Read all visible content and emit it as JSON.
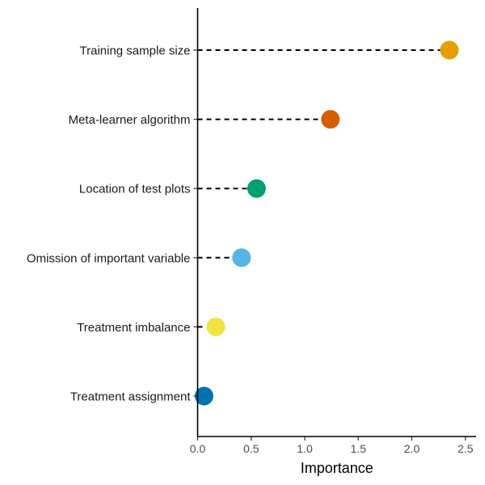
{
  "chart_data": {
    "type": "lollipop",
    "categories": [
      "Training sample size",
      "Meta-learner algorithm",
      "Location of test plots",
      "Omission of important variable",
      "Treatment imbalance",
      "Treatment assignment"
    ],
    "values": [
      2.35,
      1.24,
      0.55,
      0.41,
      0.17,
      0.06
    ],
    "colors": [
      "#E69F00",
      "#D55E00",
      "#009E73",
      "#56B4E9",
      "#F0E442",
      "#0072B2"
    ],
    "xlabel": "Importance",
    "ylabel": "",
    "xlim": [
      0,
      2.6
    ],
    "xticks": [
      0.0,
      0.5,
      1.0,
      1.5,
      2.0,
      2.5
    ],
    "xtick_labels": [
      "0.0",
      "0.5",
      "1.0",
      "1.5",
      "2.0",
      "2.5"
    ],
    "grid": false,
    "stem_style": "dashed"
  }
}
